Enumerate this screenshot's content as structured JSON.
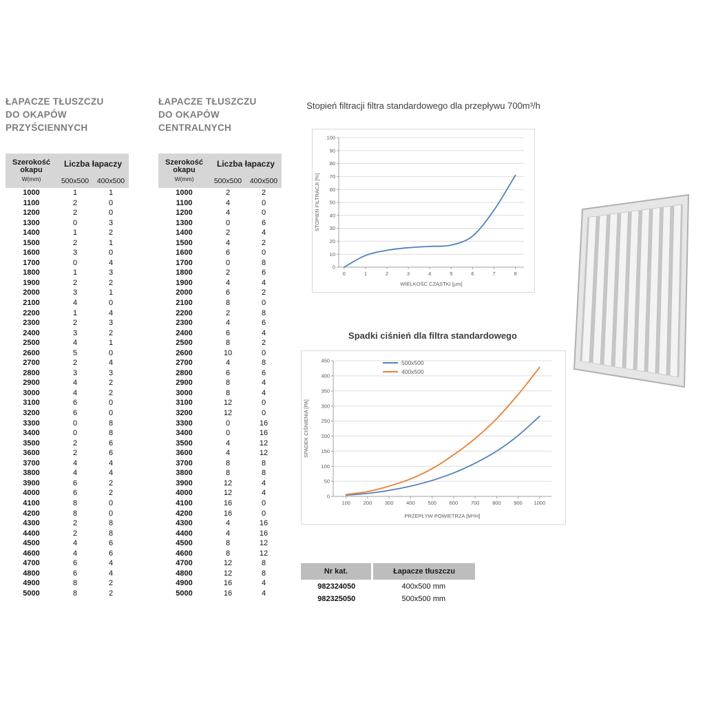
{
  "colors": {
    "table-header-bg": "#d6d6d6",
    "catalog-header-bg": "#bdbdbd",
    "title-gray": "#7c7c7c",
    "series-blue": "#4f81bd",
    "series-orange": "#ed7d31"
  },
  "tables": {
    "wall": {
      "title_lines": [
        "ŁAPACZE TŁUSZCZU",
        "DO OKAPÓW",
        "PRZYŚCIENNYCH"
      ],
      "col1_header": "Szerokość okapu",
      "col1_sub": "W(mm)",
      "group_header": "Liczba łapaczy",
      "subcols": [
        "500x500",
        "400x500"
      ],
      "rows": [
        [
          1000,
          1,
          1
        ],
        [
          1100,
          2,
          0
        ],
        [
          1200,
          2,
          0
        ],
        [
          1300,
          0,
          3
        ],
        [
          1400,
          1,
          2
        ],
        [
          1500,
          2,
          1
        ],
        [
          1600,
          3,
          0
        ],
        [
          1700,
          0,
          4
        ],
        [
          1800,
          1,
          3
        ],
        [
          1900,
          2,
          2
        ],
        [
          2000,
          3,
          1
        ],
        [
          2100,
          4,
          0
        ],
        [
          2200,
          1,
          4
        ],
        [
          2300,
          2,
          3
        ],
        [
          2400,
          3,
          2
        ],
        [
          2500,
          4,
          1
        ],
        [
          2600,
          5,
          0
        ],
        [
          2700,
          2,
          4
        ],
        [
          2800,
          3,
          3
        ],
        [
          2900,
          4,
          2
        ],
        [
          3000,
          4,
          2
        ],
        [
          3100,
          6,
          0
        ],
        [
          3200,
          6,
          0
        ],
        [
          3300,
          0,
          8
        ],
        [
          3400,
          0,
          8
        ],
        [
          3500,
          2,
          6
        ],
        [
          3600,
          2,
          6
        ],
        [
          3700,
          4,
          4
        ],
        [
          3800,
          4,
          4
        ],
        [
          3900,
          6,
          2
        ],
        [
          4000,
          6,
          2
        ],
        [
          4100,
          8,
          0
        ],
        [
          4200,
          8,
          0
        ],
        [
          4300,
          2,
          8
        ],
        [
          4400,
          2,
          8
        ],
        [
          4500,
          4,
          6
        ],
        [
          4600,
          4,
          6
        ],
        [
          4700,
          6,
          4
        ],
        [
          4800,
          6,
          4
        ],
        [
          4900,
          8,
          2
        ],
        [
          5000,
          8,
          2
        ]
      ]
    },
    "central": {
      "title_lines": [
        "ŁAPACZE TŁUSZCZU",
        "DO OKAPÓW",
        "CENTRALNYCH"
      ],
      "col1_header": "Szerokość okapu",
      "col1_sub": "W(mm)",
      "group_header": "Liczba łapaczy",
      "subcols": [
        "500x500",
        "400x500"
      ],
      "rows": [
        [
          1000,
          2,
          2
        ],
        [
          1100,
          4,
          0
        ],
        [
          1200,
          4,
          0
        ],
        [
          1300,
          0,
          6
        ],
        [
          1400,
          2,
          4
        ],
        [
          1500,
          4,
          2
        ],
        [
          1600,
          6,
          0
        ],
        [
          1700,
          0,
          8
        ],
        [
          1800,
          2,
          6
        ],
        [
          1900,
          4,
          4
        ],
        [
          2000,
          6,
          2
        ],
        [
          2100,
          8,
          0
        ],
        [
          2200,
          2,
          8
        ],
        [
          2300,
          4,
          6
        ],
        [
          2400,
          6,
          4
        ],
        [
          2500,
          8,
          2
        ],
        [
          2600,
          10,
          0
        ],
        [
          2700,
          4,
          8
        ],
        [
          2800,
          6,
          6
        ],
        [
          2900,
          8,
          4
        ],
        [
          3000,
          8,
          4
        ],
        [
          3100,
          12,
          0
        ],
        [
          3200,
          12,
          0
        ],
        [
          3300,
          0,
          16
        ],
        [
          3400,
          0,
          16
        ],
        [
          3500,
          4,
          12
        ],
        [
          3600,
          4,
          12
        ],
        [
          3700,
          8,
          8
        ],
        [
          3800,
          8,
          8
        ],
        [
          3900,
          12,
          4
        ],
        [
          4000,
          12,
          4
        ],
        [
          4100,
          16,
          0
        ],
        [
          4200,
          16,
          0
        ],
        [
          4300,
          4,
          16
        ],
        [
          4400,
          4,
          16
        ],
        [
          4500,
          8,
          12
        ],
        [
          4600,
          8,
          12
        ],
        [
          4700,
          12,
          8
        ],
        [
          4800,
          12,
          8
        ],
        [
          4900,
          16,
          4
        ],
        [
          5000,
          16,
          4
        ]
      ]
    }
  },
  "chart_data": [
    {
      "type": "line",
      "title": "Stopień filtracji filtra standardowego dla przepływu 700m³/h",
      "xlabel": "WIELKOŚĆ CZĄSTKI [µm]",
      "ylabel": "STOPIEŃ FILTRACJI [%]",
      "x": [
        0,
        1,
        2,
        3,
        4,
        5,
        6,
        7,
        8
      ],
      "xticks": [
        0,
        1,
        2,
        3,
        4,
        5,
        6,
        7,
        8
      ],
      "xlim": [
        -0.25,
        8.4
      ],
      "ylim": [
        0,
        100
      ],
      "yticks": [
        0,
        10,
        20,
        30,
        40,
        50,
        60,
        70,
        80,
        90,
        100
      ],
      "grid": "horizontal",
      "legend": "none",
      "layout_margins": {
        "l": 38,
        "r": 13,
        "t": 12,
        "b": 34
      },
      "series": [
        {
          "name": "Stopień filtracji",
          "color": "#4f81bd",
          "values": [
            0,
            9,
            13,
            15,
            16,
            17,
            24,
            44,
            71
          ]
        }
      ]
    },
    {
      "type": "line",
      "title": "Spadki ciśnień dla filtra standardowego",
      "xlabel": "PRZEPŁYW POWIETRZA [M³/H]",
      "ylabel": "SPADEK CIŚNIENIA [PA]",
      "x": [
        100,
        200,
        300,
        400,
        500,
        600,
        700,
        800,
        900,
        1000
      ],
      "xticks": [
        100,
        200,
        300,
        400,
        500,
        600,
        700,
        800,
        900,
        1000
      ],
      "xlim": [
        40,
        1055
      ],
      "ylim": [
        0,
        450
      ],
      "yticks": [
        0,
        50,
        100,
        150,
        200,
        250,
        300,
        350,
        400,
        450
      ],
      "grid": "horizontal",
      "legend": "top-center",
      "layout_margins": {
        "l": 46,
        "r": 18,
        "t": 14,
        "b": 38
      },
      "series": [
        {
          "name": "500x500",
          "color": "#4f81bd",
          "values": [
            4,
            10,
            20,
            34,
            53,
            78,
            110,
            150,
            202,
            266
          ]
        },
        {
          "name": "400x500",
          "color": "#ed7d31",
          "values": [
            6,
            16,
            34,
            58,
            92,
            138,
            192,
            258,
            338,
            428
          ]
        }
      ]
    }
  ],
  "catalog_table": {
    "headers": [
      "Nr kat.",
      "Łapacze tłuszczu"
    ],
    "rows": [
      [
        "982324050",
        "400x500 mm"
      ],
      [
        "982325050",
        "500x500 mm"
      ]
    ]
  }
}
